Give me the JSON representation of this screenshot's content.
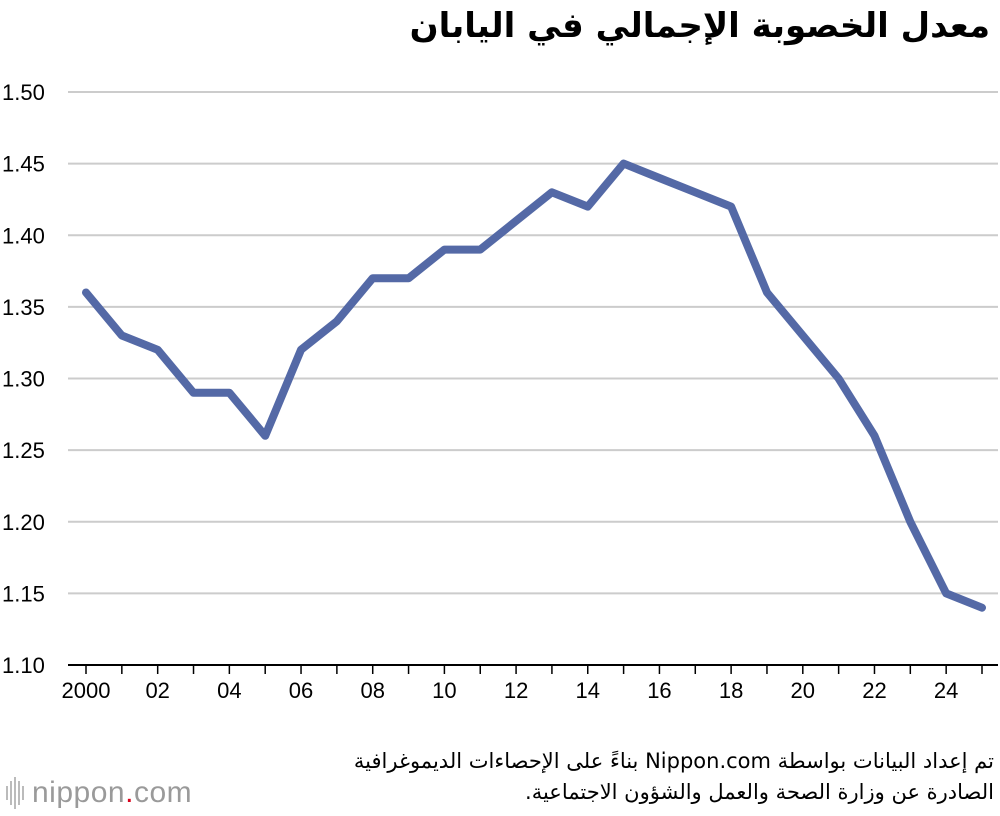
{
  "chart_data": {
    "type": "line",
    "title": "معدل الخصوبة الإجمالي في اليابان",
    "xlabel": "",
    "ylabel": "",
    "x": [
      2000,
      2001,
      2002,
      2003,
      2004,
      2005,
      2006,
      2007,
      2008,
      2009,
      2010,
      2011,
      2012,
      2013,
      2014,
      2015,
      2016,
      2017,
      2018,
      2019,
      2020,
      2021,
      2022,
      2023,
      2024,
      2025
    ],
    "series": [
      {
        "values": [
          1.36,
          1.33,
          1.32,
          1.29,
          1.29,
          1.26,
          1.32,
          1.34,
          1.37,
          1.37,
          1.39,
          1.39,
          1.41,
          1.43,
          1.42,
          1.45,
          1.44,
          1.43,
          1.42,
          1.36,
          1.33,
          1.3,
          1.26,
          1.2,
          1.15,
          1.14
        ],
        "color": "#5469a6"
      }
    ],
    "ylim": [
      1.1,
      1.5
    ],
    "xlim": [
      2000,
      2025
    ],
    "y_ticks": [
      "1.10",
      "1.15",
      "1.20",
      "1.25",
      "1.30",
      "1.35",
      "1.40",
      "1.45",
      "1.50"
    ],
    "x_ticks": [
      {
        "value": 2000,
        "label": "2000"
      },
      {
        "value": 2002,
        "label": "02"
      },
      {
        "value": 2004,
        "label": "04"
      },
      {
        "value": 2006,
        "label": "06"
      },
      {
        "value": 2008,
        "label": "08"
      },
      {
        "value": 2010,
        "label": "10"
      },
      {
        "value": 2012,
        "label": "12"
      },
      {
        "value": 2014,
        "label": "14"
      },
      {
        "value": 2016,
        "label": "16"
      },
      {
        "value": 2018,
        "label": "18"
      },
      {
        "value": 2020,
        "label": "20"
      },
      {
        "value": 2022,
        "label": "22"
      },
      {
        "value": 2024,
        "label": "24"
      }
    ],
    "grid": true,
    "grid_color": "#cccccc"
  },
  "source": {
    "line1": "تم إعداد البيانات بواسطة Nippon.com بناءً على الإحصاءات الديموغرافية",
    "line2": "الصادرة عن وزارة الصحة والعمل والشؤون الاجتماعية."
  },
  "logo": {
    "prefix": "nippon",
    "dot": ".",
    "suffix": "com",
    "icon": "nippon-logo-bars-icon"
  }
}
